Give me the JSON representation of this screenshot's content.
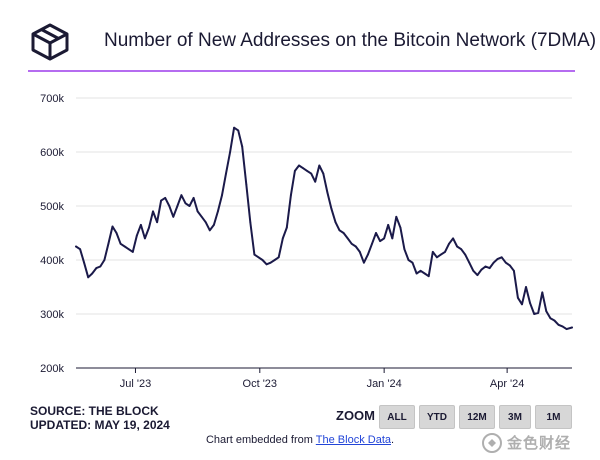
{
  "header": {
    "title": "Number of New Addresses on the Bitcoin Network (7DMA)",
    "logo_icon": "cube-logo-icon",
    "accent_color": "#b56cf0"
  },
  "chart_data": {
    "type": "line",
    "title": "Number of New Addresses on the Bitcoin Network (7DMA)",
    "xlabel": "",
    "ylabel": "",
    "ylim": [
      200000,
      700000
    ],
    "yticks": [
      200000,
      300000,
      400000,
      500000,
      600000,
      700000
    ],
    "ytick_labels": [
      "200k",
      "300k",
      "400k",
      "500k",
      "600k",
      "700k"
    ],
    "xlim": [
      "2023-05-18",
      "2024-05-19"
    ],
    "xticks": [
      "2023-07-01",
      "2023-10-01",
      "2024-01-01",
      "2024-04-01"
    ],
    "xtick_labels": [
      "Jul '23",
      "Oct '23",
      "Jan '24",
      "Apr '24"
    ],
    "grid": true,
    "line_color": "#1b1a4a",
    "series": [
      {
        "name": "New Addresses (7DMA)",
        "x": [
          "2023-05-18",
          "2023-05-21",
          "2023-05-24",
          "2023-05-27",
          "2023-05-30",
          "2023-06-02",
          "2023-06-05",
          "2023-06-08",
          "2023-06-11",
          "2023-06-14",
          "2023-06-17",
          "2023-06-20",
          "2023-06-23",
          "2023-06-26",
          "2023-06-29",
          "2023-07-02",
          "2023-07-05",
          "2023-07-08",
          "2023-07-11",
          "2023-07-14",
          "2023-07-17",
          "2023-07-20",
          "2023-07-23",
          "2023-07-26",
          "2023-07-29",
          "2023-08-01",
          "2023-08-04",
          "2023-08-07",
          "2023-08-10",
          "2023-08-13",
          "2023-08-16",
          "2023-08-19",
          "2023-08-22",
          "2023-08-25",
          "2023-08-28",
          "2023-08-31",
          "2023-09-03",
          "2023-09-06",
          "2023-09-09",
          "2023-09-12",
          "2023-09-15",
          "2023-09-18",
          "2023-09-21",
          "2023-09-24",
          "2023-09-27",
          "2023-09-30",
          "2023-10-03",
          "2023-10-06",
          "2023-10-09",
          "2023-10-12",
          "2023-10-15",
          "2023-10-18",
          "2023-10-21",
          "2023-10-24",
          "2023-10-27",
          "2023-10-30",
          "2023-11-02",
          "2023-11-05",
          "2023-11-08",
          "2023-11-11",
          "2023-11-14",
          "2023-11-17",
          "2023-11-20",
          "2023-11-23",
          "2023-11-26",
          "2023-11-29",
          "2023-12-02",
          "2023-12-05",
          "2023-12-08",
          "2023-12-11",
          "2023-12-14",
          "2023-12-17",
          "2023-12-20",
          "2023-12-23",
          "2023-12-26",
          "2023-12-29",
          "2024-01-01",
          "2024-01-04",
          "2024-01-07",
          "2024-01-10",
          "2024-01-13",
          "2024-01-16",
          "2024-01-19",
          "2024-01-22",
          "2024-01-25",
          "2024-01-28",
          "2024-01-31",
          "2024-02-03",
          "2024-02-06",
          "2024-02-09",
          "2024-02-12",
          "2024-02-15",
          "2024-02-18",
          "2024-02-21",
          "2024-02-24",
          "2024-02-27",
          "2024-03-01",
          "2024-03-04",
          "2024-03-07",
          "2024-03-10",
          "2024-03-13",
          "2024-03-16",
          "2024-03-19",
          "2024-03-22",
          "2024-03-25",
          "2024-03-28",
          "2024-03-31",
          "2024-04-03",
          "2024-04-06",
          "2024-04-09",
          "2024-04-12",
          "2024-04-15",
          "2024-04-18",
          "2024-04-21",
          "2024-04-24",
          "2024-04-27",
          "2024-04-30",
          "2024-05-03",
          "2024-05-06",
          "2024-05-09",
          "2024-05-12",
          "2024-05-15",
          "2024-05-19"
        ],
        "values": [
          425000,
          420000,
          395000,
          368000,
          375000,
          385000,
          388000,
          400000,
          430000,
          462000,
          450000,
          430000,
          425000,
          420000,
          415000,
          445000,
          465000,
          440000,
          460000,
          490000,
          470000,
          510000,
          515000,
          500000,
          480000,
          500000,
          520000,
          505000,
          500000,
          515000,
          490000,
          480000,
          470000,
          455000,
          465000,
          490000,
          520000,
          560000,
          600000,
          645000,
          640000,
          610000,
          540000,
          470000,
          410000,
          405000,
          400000,
          392000,
          395000,
          400000,
          405000,
          440000,
          460000,
          520000,
          565000,
          575000,
          570000,
          565000,
          560000,
          545000,
          575000,
          560000,
          525000,
          495000,
          470000,
          455000,
          450000,
          440000,
          430000,
          425000,
          415000,
          395000,
          410000,
          430000,
          450000,
          435000,
          440000,
          465000,
          440000,
          480000,
          460000,
          420000,
          400000,
          395000,
          375000,
          380000,
          375000,
          370000,
          415000,
          405000,
          410000,
          415000,
          430000,
          440000,
          425000,
          420000,
          410000,
          395000,
          380000,
          372000,
          382000,
          388000,
          385000,
          395000,
          402000,
          405000,
          395000,
          390000,
          380000,
          330000,
          318000,
          350000,
          320000,
          300000,
          302000,
          340000,
          305000,
          292000,
          288000,
          280000,
          277000,
          272000,
          275000
        ]
      }
    ]
  },
  "footer": {
    "source": "SOURCE: THE BLOCK",
    "updated": "UPDATED: MAY 19, 2024",
    "zoom_label": "ZOOM",
    "zoom_buttons": [
      "ALL",
      "YTD",
      "12M",
      "3M",
      "1M"
    ],
    "embed_prefix": "Chart embedded from ",
    "embed_link": "The Block Data",
    "embed_suffix": ".",
    "watermark_text": "金色财经",
    "watermark_icon": "jinse-logo-icon"
  }
}
